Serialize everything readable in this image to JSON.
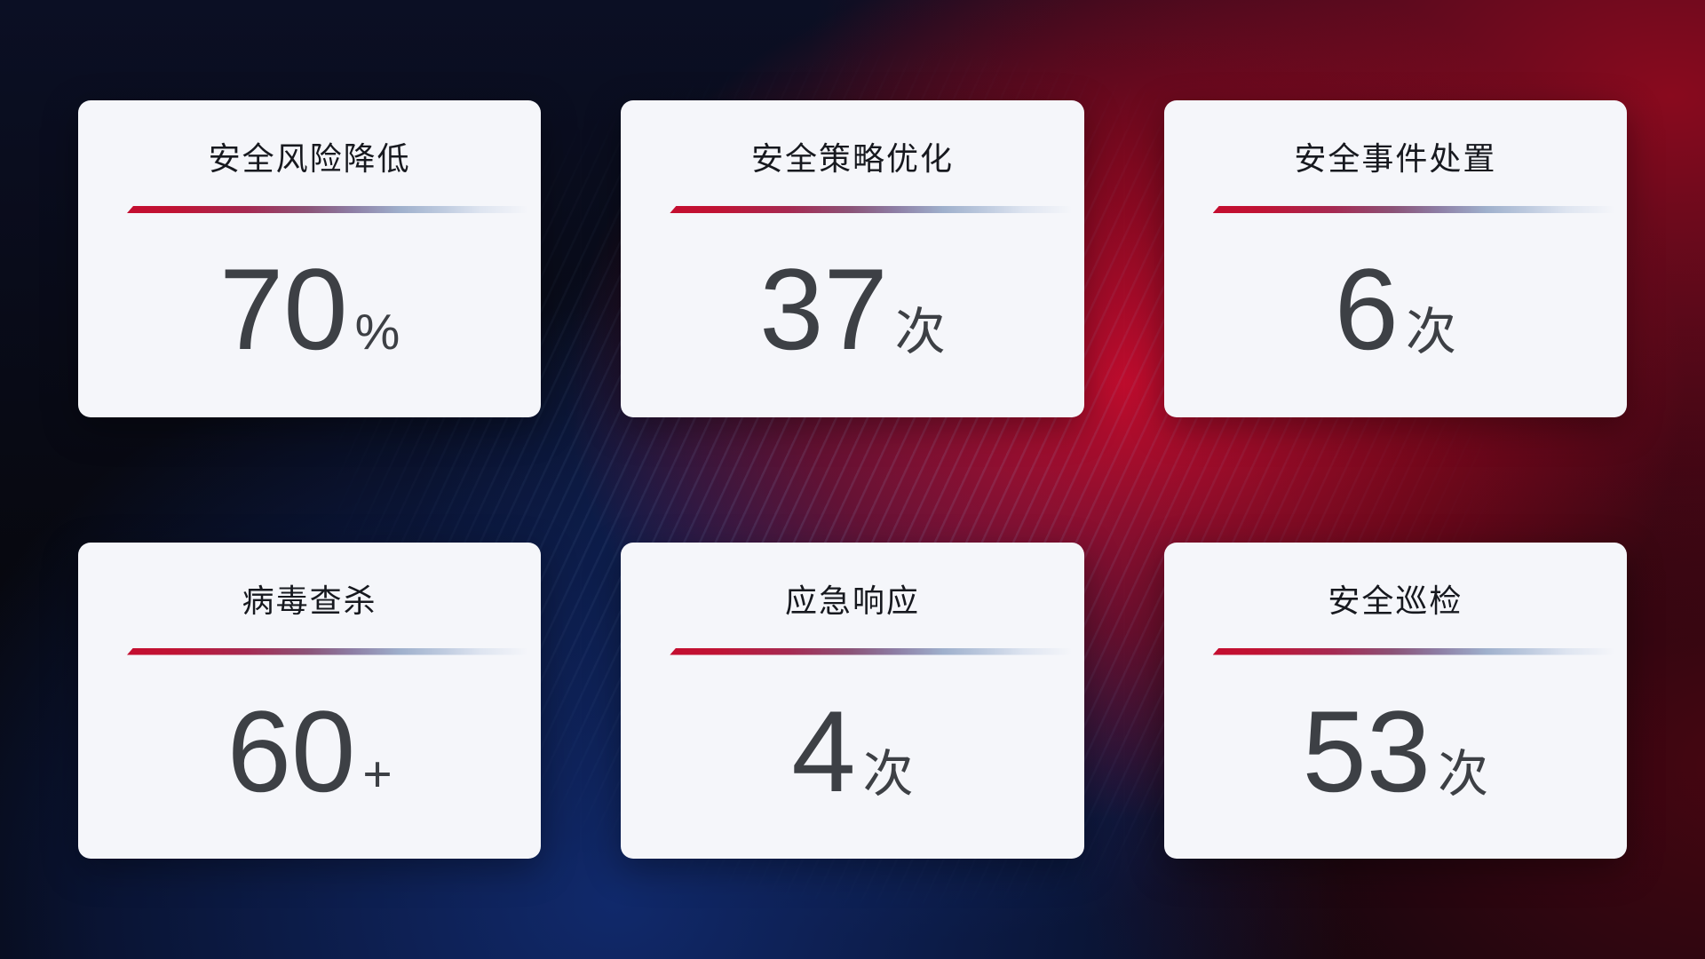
{
  "app": {
    "name": "security-operations-stats-dashboard"
  },
  "colors": {
    "background_base": "#07080f",
    "background_blue_glow": "#122b70",
    "background_red_glow": "#c60c2d",
    "card_background": "#f5f6fa",
    "title_text": "#17191f",
    "value_text": "#3d4045",
    "divider_start": "#c40d2f",
    "divider_mid": "#8d7da4",
    "divider_end": "#c3cfe2"
  },
  "cards": [
    {
      "id": "risk-reduction",
      "title": "安全风险降低",
      "value": "70",
      "unit": "%"
    },
    {
      "id": "policy-optimization",
      "title": "安全策略优化",
      "value": "37",
      "unit": "次"
    },
    {
      "id": "incident-handling",
      "title": "安全事件处置",
      "value": "6",
      "unit": "次"
    },
    {
      "id": "virus-scan",
      "title": "病毒查杀",
      "value": "60",
      "unit": "+"
    },
    {
      "id": "emergency-response",
      "title": "应急响应",
      "value": "4",
      "unit": "次"
    },
    {
      "id": "security-inspection",
      "title": "安全巡检",
      "value": "53",
      "unit": "次"
    }
  ]
}
